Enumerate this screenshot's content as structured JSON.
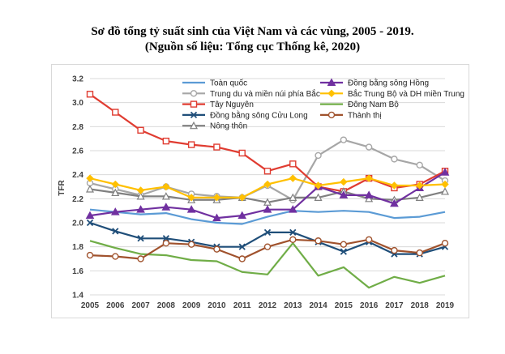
{
  "title_line1": "Sơ đồ tổng tỷ suất sinh của Việt Nam và các vùng, 2005 - 2019.",
  "title_line2": "(Nguồn số liệu: Tổng cục Thống kê, 2020)",
  "chart_data": {
    "type": "line",
    "ylabel": "TFR",
    "xlabel": "",
    "ylim": [
      1.4,
      3.2
    ],
    "yticks": [
      "1.4",
      "1.6",
      "1.8",
      "2.0",
      "2.2",
      "2.4",
      "2.6",
      "2.8",
      "3.0",
      "3.2"
    ],
    "categories": [
      "2005",
      "2006",
      "2007",
      "2008",
      "2009",
      "2010",
      "2011",
      "2012",
      "2013",
      "2014",
      "2015",
      "2016",
      "2017",
      "2018",
      "2019"
    ],
    "grid": true,
    "legend_position": "top",
    "series": [
      {
        "name": "Toàn quốc",
        "color": "#5b9bd5",
        "marker": "none",
        "values": [
          2.11,
          2.09,
          2.07,
          2.08,
          2.03,
          2.0,
          1.99,
          2.05,
          2.1,
          2.09,
          2.1,
          2.09,
          2.04,
          2.05,
          2.09
        ]
      },
      {
        "name": "Trung du và miền núi phía Bắc",
        "color": "#a6a6a6",
        "marker": "circle-open",
        "values": [
          2.33,
          2.28,
          2.23,
          2.3,
          2.24,
          2.22,
          2.21,
          2.31,
          2.19,
          2.56,
          2.69,
          2.63,
          2.53,
          2.48,
          2.35
        ]
      },
      {
        "name": "Tây Nguyên",
        "color": "#e03c31",
        "marker": "square-open",
        "values": [
          3.07,
          2.92,
          2.77,
          2.68,
          2.65,
          2.63,
          2.58,
          2.43,
          2.49,
          2.3,
          2.26,
          2.37,
          2.29,
          2.32,
          2.43
        ]
      },
      {
        "name": "Đồng bằng sông Cửu Long",
        "color": "#1f4e79",
        "marker": "x",
        "values": [
          2.0,
          1.93,
          1.87,
          1.87,
          1.84,
          1.8,
          1.8,
          1.92,
          1.92,
          1.84,
          1.76,
          1.84,
          1.74,
          1.74,
          1.8
        ]
      },
      {
        "name": "Nông thôn",
        "color": "#808080",
        "marker": "triangle-open",
        "values": [
          2.28,
          2.25,
          2.22,
          2.22,
          2.19,
          2.19,
          2.21,
          2.17,
          2.21,
          2.21,
          2.26,
          2.2,
          2.19,
          2.21,
          2.26
        ]
      },
      {
        "name": "Đồng bằng sông Hồng",
        "color": "#7030a0",
        "marker": "triangle",
        "values": [
          2.06,
          2.09,
          2.11,
          2.13,
          2.11,
          2.04,
          2.06,
          2.11,
          2.11,
          2.3,
          2.23,
          2.23,
          2.16,
          2.29,
          2.42
        ]
      },
      {
        "name": "Bắc Trung Bộ và DH miền Trung",
        "color": "#ffc000",
        "marker": "diamond",
        "values": [
          2.37,
          2.32,
          2.27,
          2.3,
          2.21,
          2.21,
          2.21,
          2.32,
          2.37,
          2.31,
          2.34,
          2.37,
          2.31,
          2.31,
          2.32
        ]
      },
      {
        "name": "Đông Nam Bộ",
        "color": "#70ad47",
        "marker": "none",
        "values": [
          1.85,
          1.79,
          1.74,
          1.73,
          1.69,
          1.68,
          1.59,
          1.57,
          1.83,
          1.56,
          1.63,
          1.46,
          1.55,
          1.5,
          1.56
        ]
      },
      {
        "name": "Thành thị",
        "color": "#a0522d",
        "marker": "circle-open",
        "values": [
          1.73,
          1.72,
          1.7,
          1.83,
          1.82,
          1.78,
          1.7,
          1.8,
          1.86,
          1.85,
          1.82,
          1.86,
          1.77,
          1.75,
          1.83
        ]
      }
    ]
  }
}
